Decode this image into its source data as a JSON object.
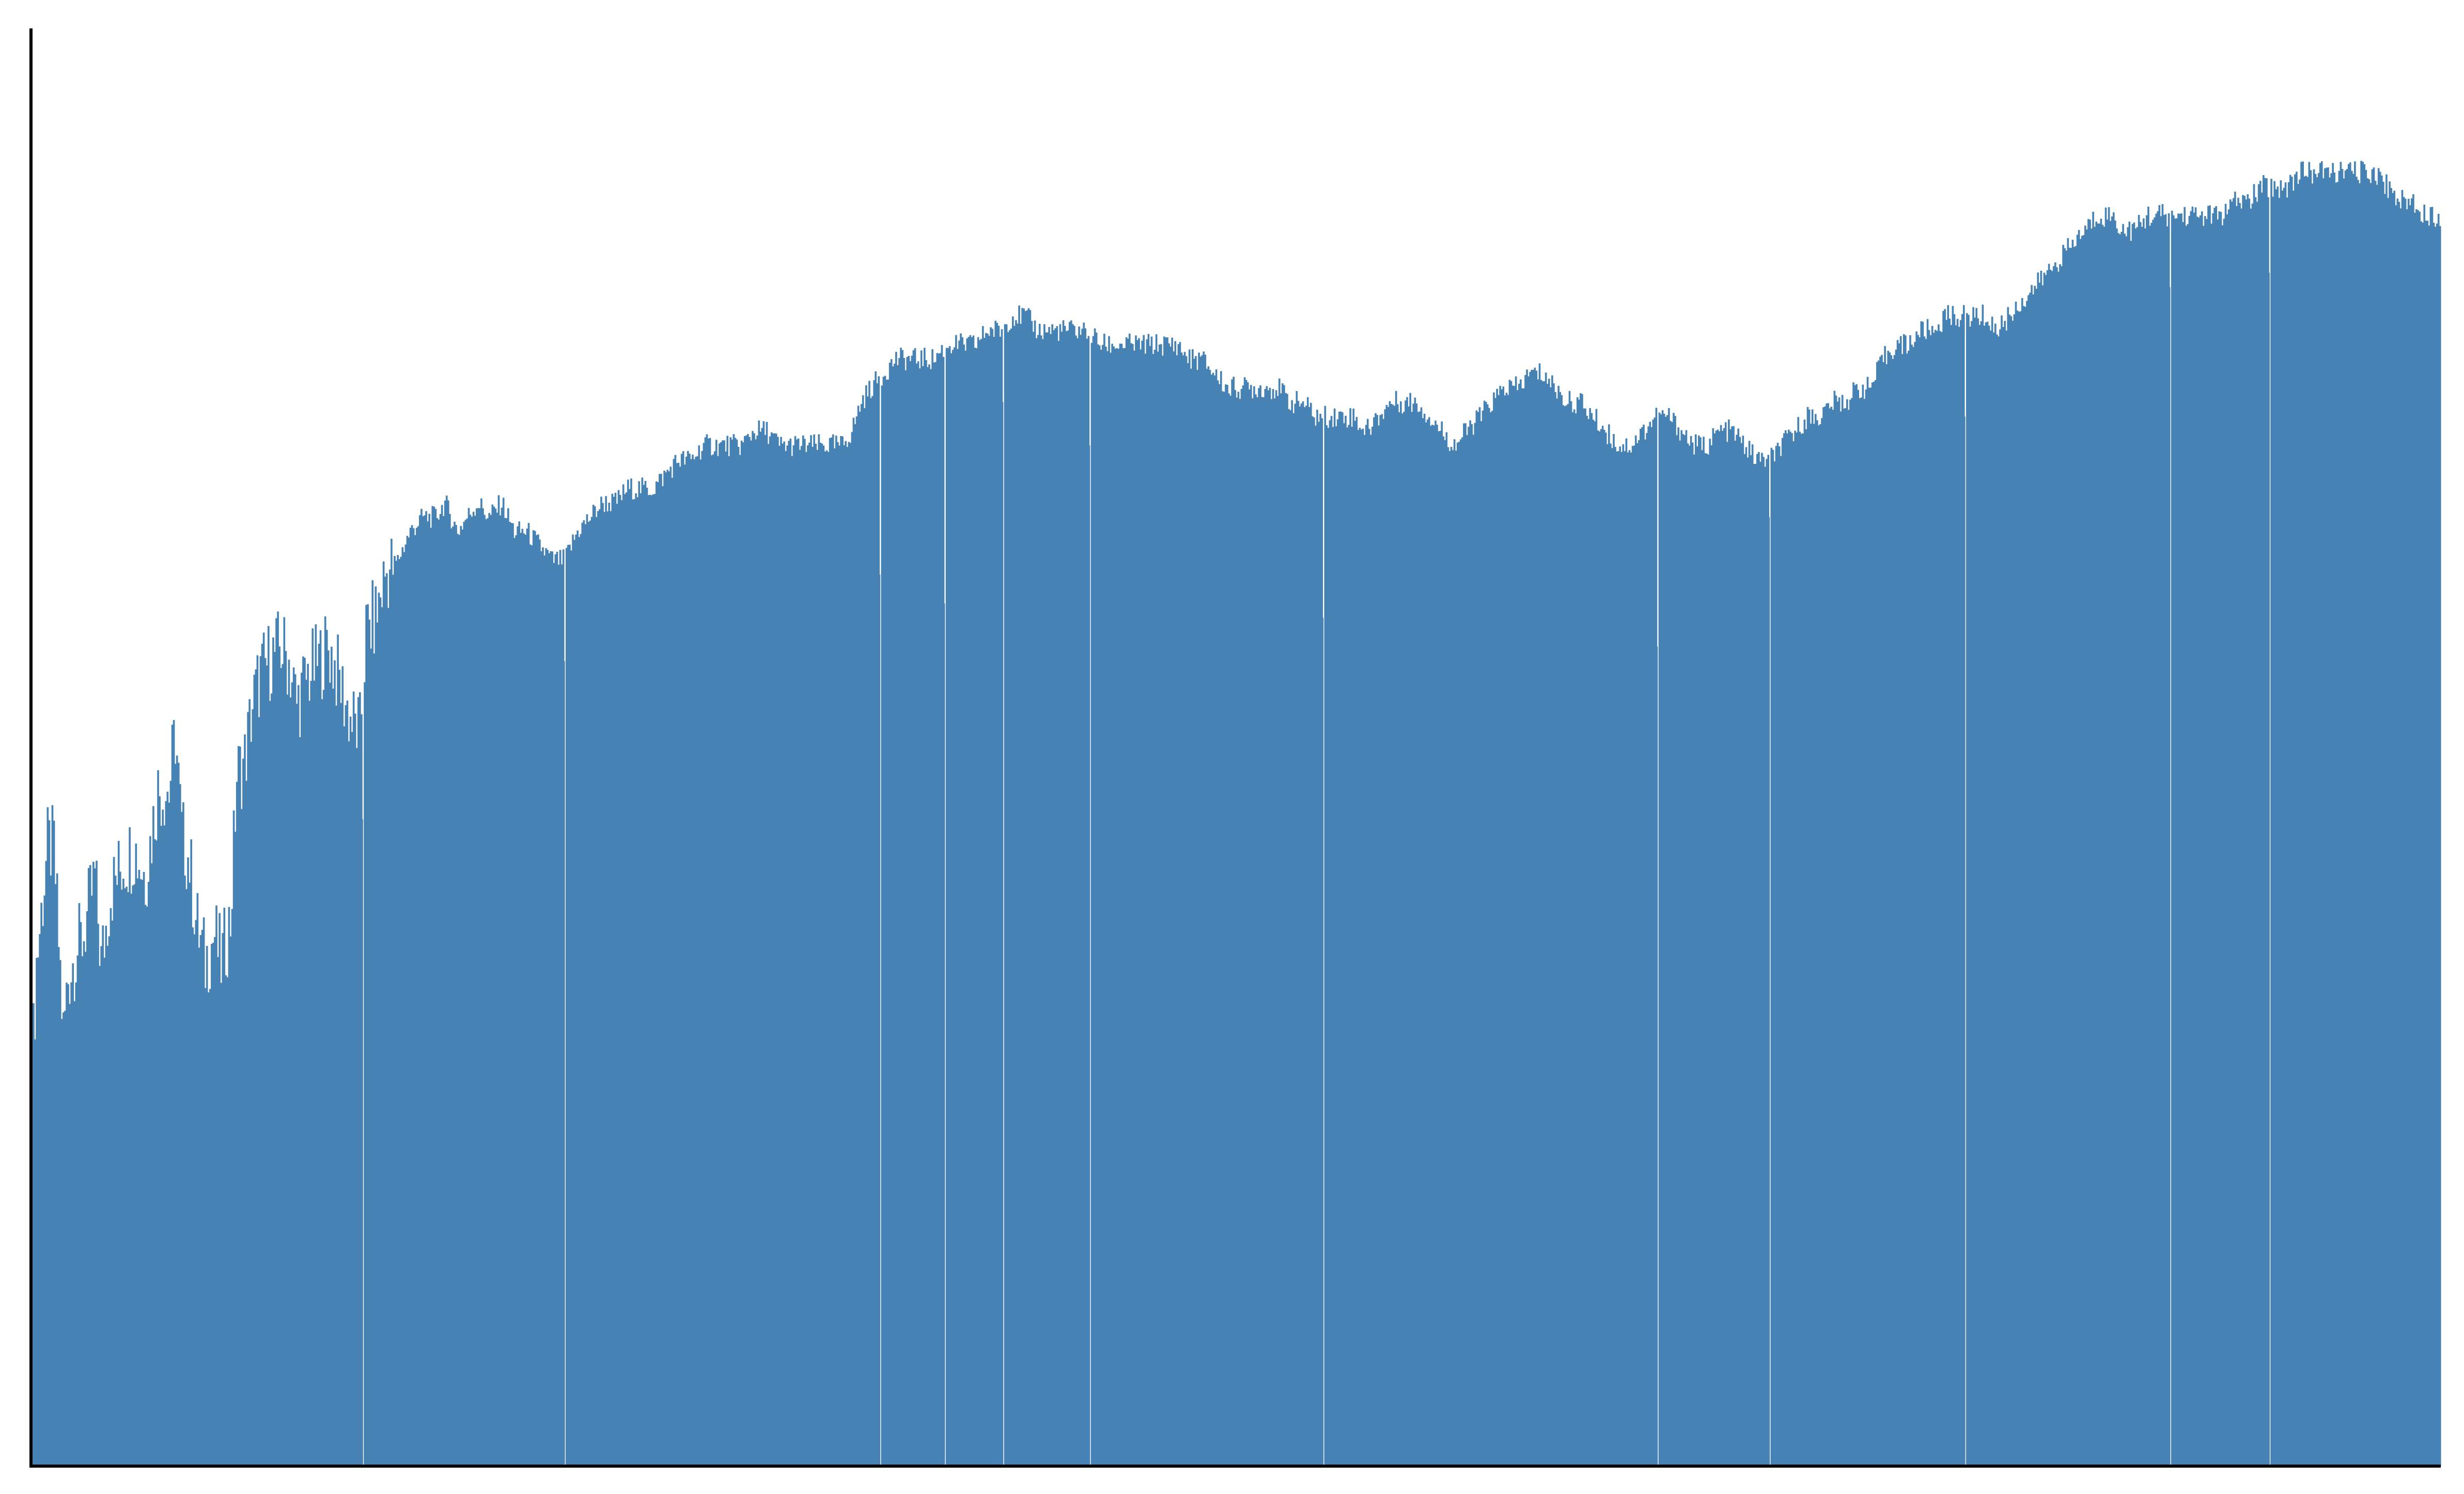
{
  "chart_data": {
    "type": "bar",
    "title": "",
    "xlabel": "",
    "ylabel": "",
    "grid": false,
    "legend": "none",
    "ylim": [
      0,
      100
    ],
    "x_range": [
      0,
      1528
    ],
    "fill_color": "#4682b4",
    "background_color": "#ffffff",
    "axis_color": "#000000",
    "axes_shown": [
      "left",
      "bottom"
    ],
    "tick_labels": "none",
    "series_envelope": {
      "description_points": [
        [
          0,
          27
        ],
        [
          3,
          35
        ],
        [
          10,
          43
        ],
        [
          14,
          43
        ],
        [
          20,
          30
        ],
        [
          23,
          34
        ],
        [
          29,
          36
        ],
        [
          33,
          37
        ],
        [
          40,
          41
        ],
        [
          44,
          35
        ],
        [
          50,
          40
        ],
        [
          58,
          42
        ],
        [
          65,
          43
        ],
        [
          72,
          41
        ],
        [
          80,
          47
        ],
        [
          87,
          47
        ],
        [
          91,
          51
        ],
        [
          95,
          44
        ],
        [
          100,
          42
        ],
        [
          104,
          38
        ],
        [
          110,
          35
        ],
        [
          116,
          37
        ],
        [
          120,
          35
        ],
        [
          126,
          38
        ],
        [
          130,
          48
        ],
        [
          135,
          49
        ],
        [
          140,
          53
        ],
        [
          145,
          55
        ],
        [
          150,
          56
        ],
        [
          158,
          57
        ],
        [
          163,
          56
        ],
        [
          168,
          53
        ],
        [
          175,
          55
        ],
        [
          182,
          56
        ],
        [
          188,
          57
        ],
        [
          194,
          55
        ],
        [
          202,
          52
        ],
        [
          208,
          51
        ],
        [
          212,
          58
        ],
        [
          218,
          59
        ],
        [
          224,
          62
        ],
        [
          232,
          63
        ],
        [
          240,
          65
        ],
        [
          248,
          66
        ],
        [
          256,
          66
        ],
        [
          262,
          67
        ],
        [
          270,
          65
        ],
        [
          276,
          66
        ],
        [
          283,
          67
        ],
        [
          290,
          66
        ],
        [
          298,
          67
        ],
        [
          306,
          65
        ],
        [
          314,
          65
        ],
        [
          322,
          64
        ],
        [
          330,
          63
        ],
        [
          338,
          63
        ],
        [
          346,
          65
        ],
        [
          354,
          66
        ],
        [
          362,
          67
        ],
        [
          370,
          67
        ],
        [
          378,
          68
        ],
        [
          386,
          68
        ],
        [
          394,
          68
        ],
        [
          402,
          69
        ],
        [
          410,
          70
        ],
        [
          418,
          70
        ],
        [
          426,
          71
        ],
        [
          434,
          71
        ],
        [
          442,
          71
        ],
        [
          450,
          71
        ],
        [
          458,
          72
        ],
        [
          466,
          72
        ],
        [
          474,
          71
        ],
        [
          482,
          71
        ],
        [
          490,
          71
        ],
        [
          498,
          71
        ],
        [
          506,
          71
        ],
        [
          514,
          71
        ],
        [
          520,
          72
        ],
        [
          526,
          74
        ],
        [
          532,
          75
        ],
        [
          540,
          76
        ],
        [
          548,
          77
        ],
        [
          556,
          77
        ],
        [
          564,
          77
        ],
        [
          572,
          77
        ],
        [
          580,
          78
        ],
        [
          590,
          78
        ],
        [
          598,
          78
        ],
        [
          606,
          79
        ],
        [
          614,
          79
        ],
        [
          622,
          80
        ],
        [
          630,
          80
        ],
        [
          638,
          79
        ],
        [
          646,
          79
        ],
        [
          654,
          79
        ],
        [
          662,
          79
        ],
        [
          670,
          79
        ],
        [
          678,
          78
        ],
        [
          686,
          78
        ],
        [
          694,
          78
        ],
        [
          702,
          78
        ],
        [
          710,
          78
        ],
        [
          718,
          78
        ],
        [
          726,
          78
        ],
        [
          734,
          77
        ],
        [
          742,
          77
        ],
        [
          750,
          76
        ],
        [
          758,
          75
        ],
        [
          766,
          75
        ],
        [
          774,
          75
        ],
        [
          782,
          75
        ],
        [
          790,
          75
        ],
        [
          798,
          74
        ],
        [
          806,
          74
        ],
        [
          814,
          73
        ],
        [
          822,
          73
        ],
        [
          830,
          73
        ],
        [
          838,
          73
        ],
        [
          846,
          72
        ],
        [
          854,
          73
        ],
        [
          862,
          74
        ],
        [
          870,
          74
        ],
        [
          878,
          74
        ],
        [
          886,
          73
        ],
        [
          894,
          72
        ],
        [
          902,
          71
        ],
        [
          910,
          72
        ],
        [
          918,
          73
        ],
        [
          926,
          74
        ],
        [
          934,
          75
        ],
        [
          942,
          75
        ],
        [
          950,
          76
        ],
        [
          958,
          76
        ],
        [
          966,
          75
        ],
        [
          974,
          74
        ],
        [
          982,
          74
        ],
        [
          990,
          73
        ],
        [
          998,
          72
        ],
        [
          1006,
          71
        ],
        [
          1014,
          71
        ],
        [
          1022,
          72
        ],
        [
          1030,
          73
        ],
        [
          1038,
          73
        ],
        [
          1046,
          72
        ],
        [
          1054,
          71
        ],
        [
          1062,
          71
        ],
        [
          1070,
          72
        ],
        [
          1078,
          72
        ],
        [
          1086,
          71
        ],
        [
          1094,
          70
        ],
        [
          1102,
          70
        ],
        [
          1110,
          71
        ],
        [
          1118,
          72
        ],
        [
          1126,
          73
        ],
        [
          1134,
          73
        ],
        [
          1142,
          74
        ],
        [
          1150,
          74
        ],
        [
          1158,
          75
        ],
        [
          1166,
          75
        ],
        [
          1174,
          77
        ],
        [
          1182,
          78
        ],
        [
          1190,
          78
        ],
        [
          1198,
          79
        ],
        [
          1206,
          79
        ],
        [
          1214,
          80
        ],
        [
          1222,
          80
        ],
        [
          1230,
          80
        ],
        [
          1238,
          80
        ],
        [
          1246,
          79
        ],
        [
          1254,
          80
        ],
        [
          1262,
          81
        ],
        [
          1270,
          82
        ],
        [
          1278,
          83
        ],
        [
          1286,
          84
        ],
        [
          1294,
          85
        ],
        [
          1302,
          86
        ],
        [
          1310,
          87
        ],
        [
          1318,
          87
        ],
        [
          1326,
          86
        ],
        [
          1334,
          86
        ],
        [
          1342,
          87
        ],
        [
          1350,
          87
        ],
        [
          1358,
          87
        ],
        [
          1366,
          87
        ],
        [
          1374,
          87
        ],
        [
          1382,
          87
        ],
        [
          1390,
          87
        ],
        [
          1398,
          88
        ],
        [
          1406,
          88
        ],
        [
          1414,
          89
        ],
        [
          1422,
          89
        ],
        [
          1430,
          89
        ],
        [
          1438,
          90
        ],
        [
          1446,
          90
        ],
        [
          1454,
          90
        ],
        [
          1462,
          90
        ],
        [
          1470,
          90
        ],
        [
          1478,
          90
        ],
        [
          1486,
          90
        ],
        [
          1494,
          89
        ],
        [
          1502,
          88
        ],
        [
          1510,
          88
        ],
        [
          1518,
          87
        ],
        [
          1528,
          87
        ]
      ],
      "dips": [
        {
          "x": 210,
          "value": 45
        },
        {
          "x": 338,
          "value": 56
        },
        {
          "x": 538,
          "value": 62
        },
        {
          "x": 579,
          "value": 60
        },
        {
          "x": 616,
          "value": 74
        },
        {
          "x": 671,
          "value": 71
        },
        {
          "x": 819,
          "value": 59
        },
        {
          "x": 1031,
          "value": 57
        },
        {
          "x": 1102,
          "value": 66
        },
        {
          "x": 1226,
          "value": 73
        },
        {
          "x": 1356,
          "value": 82
        },
        {
          "x": 1419,
          "value": 83
        }
      ]
    }
  }
}
